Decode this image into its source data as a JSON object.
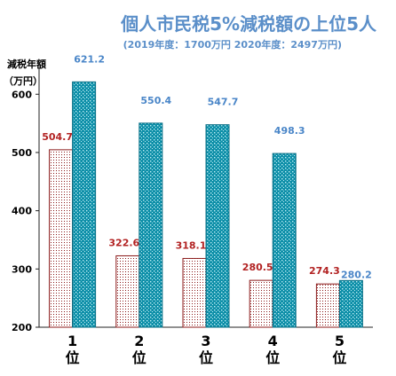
{
  "chart_data": {
    "type": "bar",
    "title": "個人市民税5%減税額の上位5人",
    "subtitle": "(2019年度：1700万円 2020年度：2497万円)",
    "ylabel_line1": "減税年額",
    "ylabel_line2": "（万円）",
    "ylim": [
      200,
      640
    ],
    "yticks": [
      200,
      300,
      400,
      500,
      600
    ],
    "categories": [
      {
        "num": "1",
        "suffix": "位"
      },
      {
        "num": "2",
        "suffix": "位"
      },
      {
        "num": "3",
        "suffix": "位"
      },
      {
        "num": "4",
        "suffix": "位"
      },
      {
        "num": "5",
        "suffix": "位"
      }
    ],
    "series": [
      {
        "values": [
          504.7,
          322.6,
          318.1,
          280.5,
          274.3
        ],
        "color": "#b22222",
        "pattern": "dots"
      },
      {
        "values": [
          621.2,
          550.4,
          547.7,
          498.3,
          280.2
        ],
        "color": "#0e8fa8",
        "pattern": "teal-dots"
      }
    ],
    "grid": false,
    "legend": "none"
  }
}
